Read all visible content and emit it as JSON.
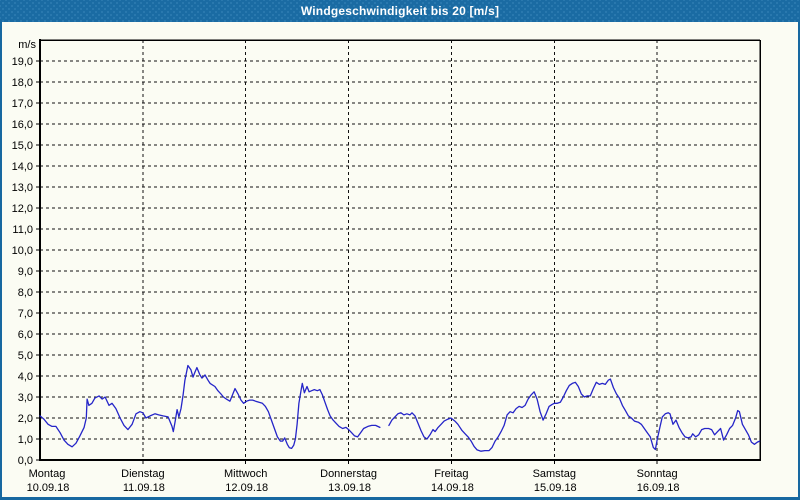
{
  "window": {
    "title": "Windgeschwindigkeit bis 20 [m/s]"
  },
  "colors": {
    "titlebar_blue": "#1a6ba3",
    "border_blue": "#1768a0",
    "plot_background": "#fbfcf3",
    "grid_color": "#111111",
    "series_blue": "#2525c8"
  },
  "chart_data": {
    "type": "line",
    "title": "Windgeschwindigkeit bis 20 [m/s]",
    "unit_label": "m/s",
    "ylim": [
      0,
      20
    ],
    "ytick_interval": 1.0,
    "ytick_labels": [
      "0,0",
      "1,0",
      "2,0",
      "3,0",
      "4,0",
      "5,0",
      "6,0",
      "7,0",
      "8,0",
      "9,0",
      "10,0",
      "11,0",
      "12,0",
      "13,0",
      "14,0",
      "15,0",
      "16,0",
      "17,0",
      "18,0",
      "19,0"
    ],
    "grid": true,
    "legend": "none",
    "x_unit": "hours since Monday 00:00",
    "xlim": [
      0,
      168
    ],
    "days": [
      {
        "name": "Montag",
        "date": "10.09.18"
      },
      {
        "name": "Dienstag",
        "date": "11.09.18"
      },
      {
        "name": "Mittwoch",
        "date": "12.09.18"
      },
      {
        "name": "Donnerstag",
        "date": "13.09.18"
      },
      {
        "name": "Freitag",
        "date": "14.09.18"
      },
      {
        "name": "Samstag",
        "date": "15.09.18"
      },
      {
        "name": "Sonntag",
        "date": "16.09.18"
      }
    ],
    "series": [
      {
        "name": "Windgeschwindigkeit [m/s]",
        "color": "#2525c8",
        "points": [
          [
            0,
            2.1
          ],
          [
            0.9,
            1.95
          ],
          [
            1.9,
            1.7
          ],
          [
            2.8,
            1.6
          ],
          [
            3.7,
            1.6
          ],
          [
            4.7,
            1.3
          ],
          [
            5.6,
            0.95
          ],
          [
            6.5,
            0.75
          ],
          [
            7.5,
            0.63
          ],
          [
            8.4,
            0.8
          ],
          [
            9.3,
            1.15
          ],
          [
            10.3,
            1.55
          ],
          [
            10.8,
            2.0
          ],
          [
            11.0,
            2.9
          ],
          [
            11.4,
            2.6
          ],
          [
            12.1,
            2.7
          ],
          [
            12.8,
            2.95
          ],
          [
            13.8,
            3.05
          ],
          [
            14.5,
            2.9
          ],
          [
            15.2,
            3.0
          ],
          [
            16.1,
            2.6
          ],
          [
            16.8,
            2.7
          ],
          [
            17.7,
            2.45
          ],
          [
            18.7,
            2.0
          ],
          [
            19.6,
            1.65
          ],
          [
            20.5,
            1.45
          ],
          [
            21.5,
            1.7
          ],
          [
            22.4,
            2.2
          ],
          [
            23.3,
            2.3
          ],
          [
            24,
            2.25
          ],
          [
            24.7,
            2.0
          ],
          [
            25.7,
            2.1
          ],
          [
            26.8,
            2.2
          ],
          [
            27.7,
            2.15
          ],
          [
            28.7,
            2.1
          ],
          [
            29.9,
            2.05
          ],
          [
            30.8,
            1.6
          ],
          [
            31.1,
            1.35
          ],
          [
            31.5,
            1.8
          ],
          [
            32.0,
            2.4
          ],
          [
            32.4,
            2.05
          ],
          [
            32.9,
            2.45
          ],
          [
            33.4,
            3.1
          ],
          [
            33.8,
            3.8
          ],
          [
            34.5,
            4.5
          ],
          [
            35.2,
            4.3
          ],
          [
            35.7,
            3.95
          ],
          [
            36.2,
            4.2
          ],
          [
            36.6,
            4.4
          ],
          [
            37.3,
            4.05
          ],
          [
            37.8,
            3.9
          ],
          [
            38.5,
            4.05
          ],
          [
            39.2,
            3.8
          ],
          [
            39.7,
            3.65
          ],
          [
            40.8,
            3.5
          ],
          [
            41.5,
            3.3
          ],
          [
            42.2,
            3.15
          ],
          [
            42.8,
            3.0
          ],
          [
            43.5,
            2.9
          ],
          [
            44.3,
            2.8
          ],
          [
            45.0,
            3.15
          ],
          [
            45.5,
            3.4
          ],
          [
            46.2,
            3.15
          ],
          [
            46.9,
            2.85
          ],
          [
            47.5,
            2.7
          ],
          [
            48.2,
            2.8
          ],
          [
            48.9,
            2.85
          ],
          [
            49.6,
            2.85
          ],
          [
            50.3,
            2.8
          ],
          [
            51.1,
            2.75
          ],
          [
            51.9,
            2.7
          ],
          [
            52.6,
            2.55
          ],
          [
            53.3,
            2.3
          ],
          [
            54.0,
            1.9
          ],
          [
            54.7,
            1.5
          ],
          [
            55.4,
            1.1
          ],
          [
            56.1,
            0.9
          ],
          [
            56.6,
            0.9
          ],
          [
            57.1,
            1.05
          ],
          [
            57.7,
            0.75
          ],
          [
            58.2,
            0.58
          ],
          [
            58.7,
            0.55
          ],
          [
            59.2,
            0.7
          ],
          [
            59.6,
            1.0
          ],
          [
            60.0,
            1.7
          ],
          [
            60.4,
            2.7
          ],
          [
            60.9,
            3.3
          ],
          [
            61.2,
            3.65
          ],
          [
            61.7,
            3.2
          ],
          [
            62.3,
            3.5
          ],
          [
            62.8,
            3.25
          ],
          [
            63.4,
            3.3
          ],
          [
            64.0,
            3.35
          ],
          [
            64.7,
            3.3
          ],
          [
            65.3,
            3.35
          ],
          [
            65.9,
            3.1
          ],
          [
            66.5,
            2.75
          ],
          [
            67.1,
            2.4
          ],
          [
            67.7,
            2.1
          ],
          [
            68.4,
            1.9
          ],
          [
            69.1,
            1.75
          ],
          [
            69.8,
            1.6
          ],
          [
            70.6,
            1.5
          ],
          [
            71.4,
            1.55
          ],
          [
            72,
            1.45
          ],
          [
            72.7,
            1.3
          ],
          [
            73.4,
            1.15
          ],
          [
            74.1,
            1.1
          ],
          [
            74.8,
            1.3
          ],
          [
            75.5,
            1.5
          ],
          [
            76.5,
            1.6
          ],
          [
            77.4,
            1.65
          ],
          [
            78.3,
            1.65
          ],
          [
            79.3,
            1.55
          ],
          null,
          [
            81.4,
            1.65
          ],
          [
            82.1,
            1.9
          ],
          [
            82.8,
            2.05
          ],
          [
            83.5,
            2.2
          ],
          [
            84.2,
            2.25
          ],
          [
            84.9,
            2.15
          ],
          [
            85.6,
            2.2
          ],
          [
            86.3,
            2.15
          ],
          [
            86.8,
            2.25
          ],
          [
            87.5,
            2.1
          ],
          [
            88.2,
            1.75
          ],
          [
            88.9,
            1.4
          ],
          [
            89.6,
            1.1
          ],
          [
            90.3,
            1.0
          ],
          [
            91.0,
            1.2
          ],
          [
            91.7,
            1.45
          ],
          [
            92.2,
            1.35
          ],
          [
            92.9,
            1.55
          ],
          [
            93.6,
            1.7
          ],
          [
            94.3,
            1.85
          ],
          [
            95.2,
            1.95
          ],
          [
            95.9,
            2.0
          ],
          [
            96.8,
            1.85
          ],
          [
            97.5,
            1.7
          ],
          [
            98.5,
            1.4
          ],
          [
            99.2,
            1.25
          ],
          [
            99.9,
            1.1
          ],
          [
            100.6,
            0.9
          ],
          [
            101.3,
            0.65
          ],
          [
            102.0,
            0.48
          ],
          [
            102.9,
            0.42
          ],
          [
            103.8,
            0.45
          ],
          [
            104.8,
            0.45
          ],
          [
            105.5,
            0.6
          ],
          [
            106.2,
            0.9
          ],
          [
            106.9,
            1.1
          ],
          [
            107.6,
            1.35
          ],
          [
            108.3,
            1.65
          ],
          [
            109.0,
            2.15
          ],
          [
            109.7,
            2.3
          ],
          [
            110.4,
            2.25
          ],
          [
            111.1,
            2.45
          ],
          [
            111.8,
            2.55
          ],
          [
            112.5,
            2.5
          ],
          [
            113.2,
            2.6
          ],
          [
            113.9,
            2.9
          ],
          [
            114.6,
            3.1
          ],
          [
            115.3,
            3.25
          ],
          [
            116.0,
            2.9
          ],
          [
            116.7,
            2.3
          ],
          [
            117.4,
            1.9
          ],
          [
            118.1,
            2.2
          ],
          [
            118.8,
            2.55
          ],
          [
            119.5,
            2.65
          ],
          [
            120,
            2.7
          ],
          [
            120.7,
            2.7
          ],
          [
            121.4,
            2.75
          ],
          [
            122.1,
            3.0
          ],
          [
            122.8,
            3.3
          ],
          [
            123.5,
            3.55
          ],
          [
            124.2,
            3.65
          ],
          [
            124.9,
            3.7
          ],
          [
            125.6,
            3.5
          ],
          [
            126.3,
            3.15
          ],
          [
            127.0,
            3.0
          ],
          [
            127.7,
            3.05
          ],
          [
            128.4,
            3.05
          ],
          [
            129.1,
            3.4
          ],
          [
            129.8,
            3.7
          ],
          [
            130.5,
            3.6
          ],
          [
            131.2,
            3.65
          ],
          [
            131.9,
            3.6
          ],
          [
            132.6,
            3.8
          ],
          [
            133.1,
            3.85
          ],
          [
            133.8,
            3.45
          ],
          [
            134.5,
            3.15
          ],
          [
            135.2,
            2.95
          ],
          [
            135.9,
            2.6
          ],
          [
            136.6,
            2.35
          ],
          [
            137.3,
            2.1
          ],
          [
            138.0,
            2.0
          ],
          [
            138.7,
            1.85
          ],
          [
            139.6,
            1.8
          ],
          [
            140.3,
            1.7
          ],
          [
            141.0,
            1.5
          ],
          [
            141.7,
            1.3
          ],
          [
            142.4,
            1.1
          ],
          [
            143.1,
            0.6
          ],
          [
            143.6,
            0.5
          ],
          [
            144,
            0.95
          ],
          [
            144.7,
            1.6
          ],
          [
            145.2,
            2.05
          ],
          [
            145.9,
            2.2
          ],
          [
            146.6,
            2.25
          ],
          [
            147.0,
            2.2
          ],
          [
            147.7,
            1.7
          ],
          [
            148.4,
            1.9
          ],
          [
            149.1,
            1.55
          ],
          [
            149.8,
            1.3
          ],
          [
            150.5,
            1.1
          ],
          [
            151.2,
            1.05
          ],
          [
            151.9,
            1.1
          ],
          [
            152.3,
            1.25
          ],
          [
            153.0,
            1.1
          ],
          [
            153.7,
            1.2
          ],
          [
            154.4,
            1.45
          ],
          [
            155.1,
            1.5
          ],
          [
            156.0,
            1.5
          ],
          [
            156.7,
            1.45
          ],
          [
            157.4,
            1.2
          ],
          [
            158.1,
            1.35
          ],
          [
            158.8,
            1.5
          ],
          [
            159.5,
            0.95
          ],
          [
            160.2,
            1.2
          ],
          [
            160.9,
            1.5
          ],
          [
            161.6,
            1.65
          ],
          [
            162.3,
            2.0
          ],
          [
            162.8,
            2.35
          ],
          [
            163.2,
            2.3
          ],
          [
            163.9,
            1.7
          ],
          [
            164.6,
            1.45
          ],
          [
            165.3,
            1.2
          ],
          [
            166.0,
            0.85
          ],
          [
            166.7,
            0.75
          ],
          [
            167.4,
            0.85
          ],
          [
            167.9,
            0.9
          ]
        ]
      }
    ]
  }
}
